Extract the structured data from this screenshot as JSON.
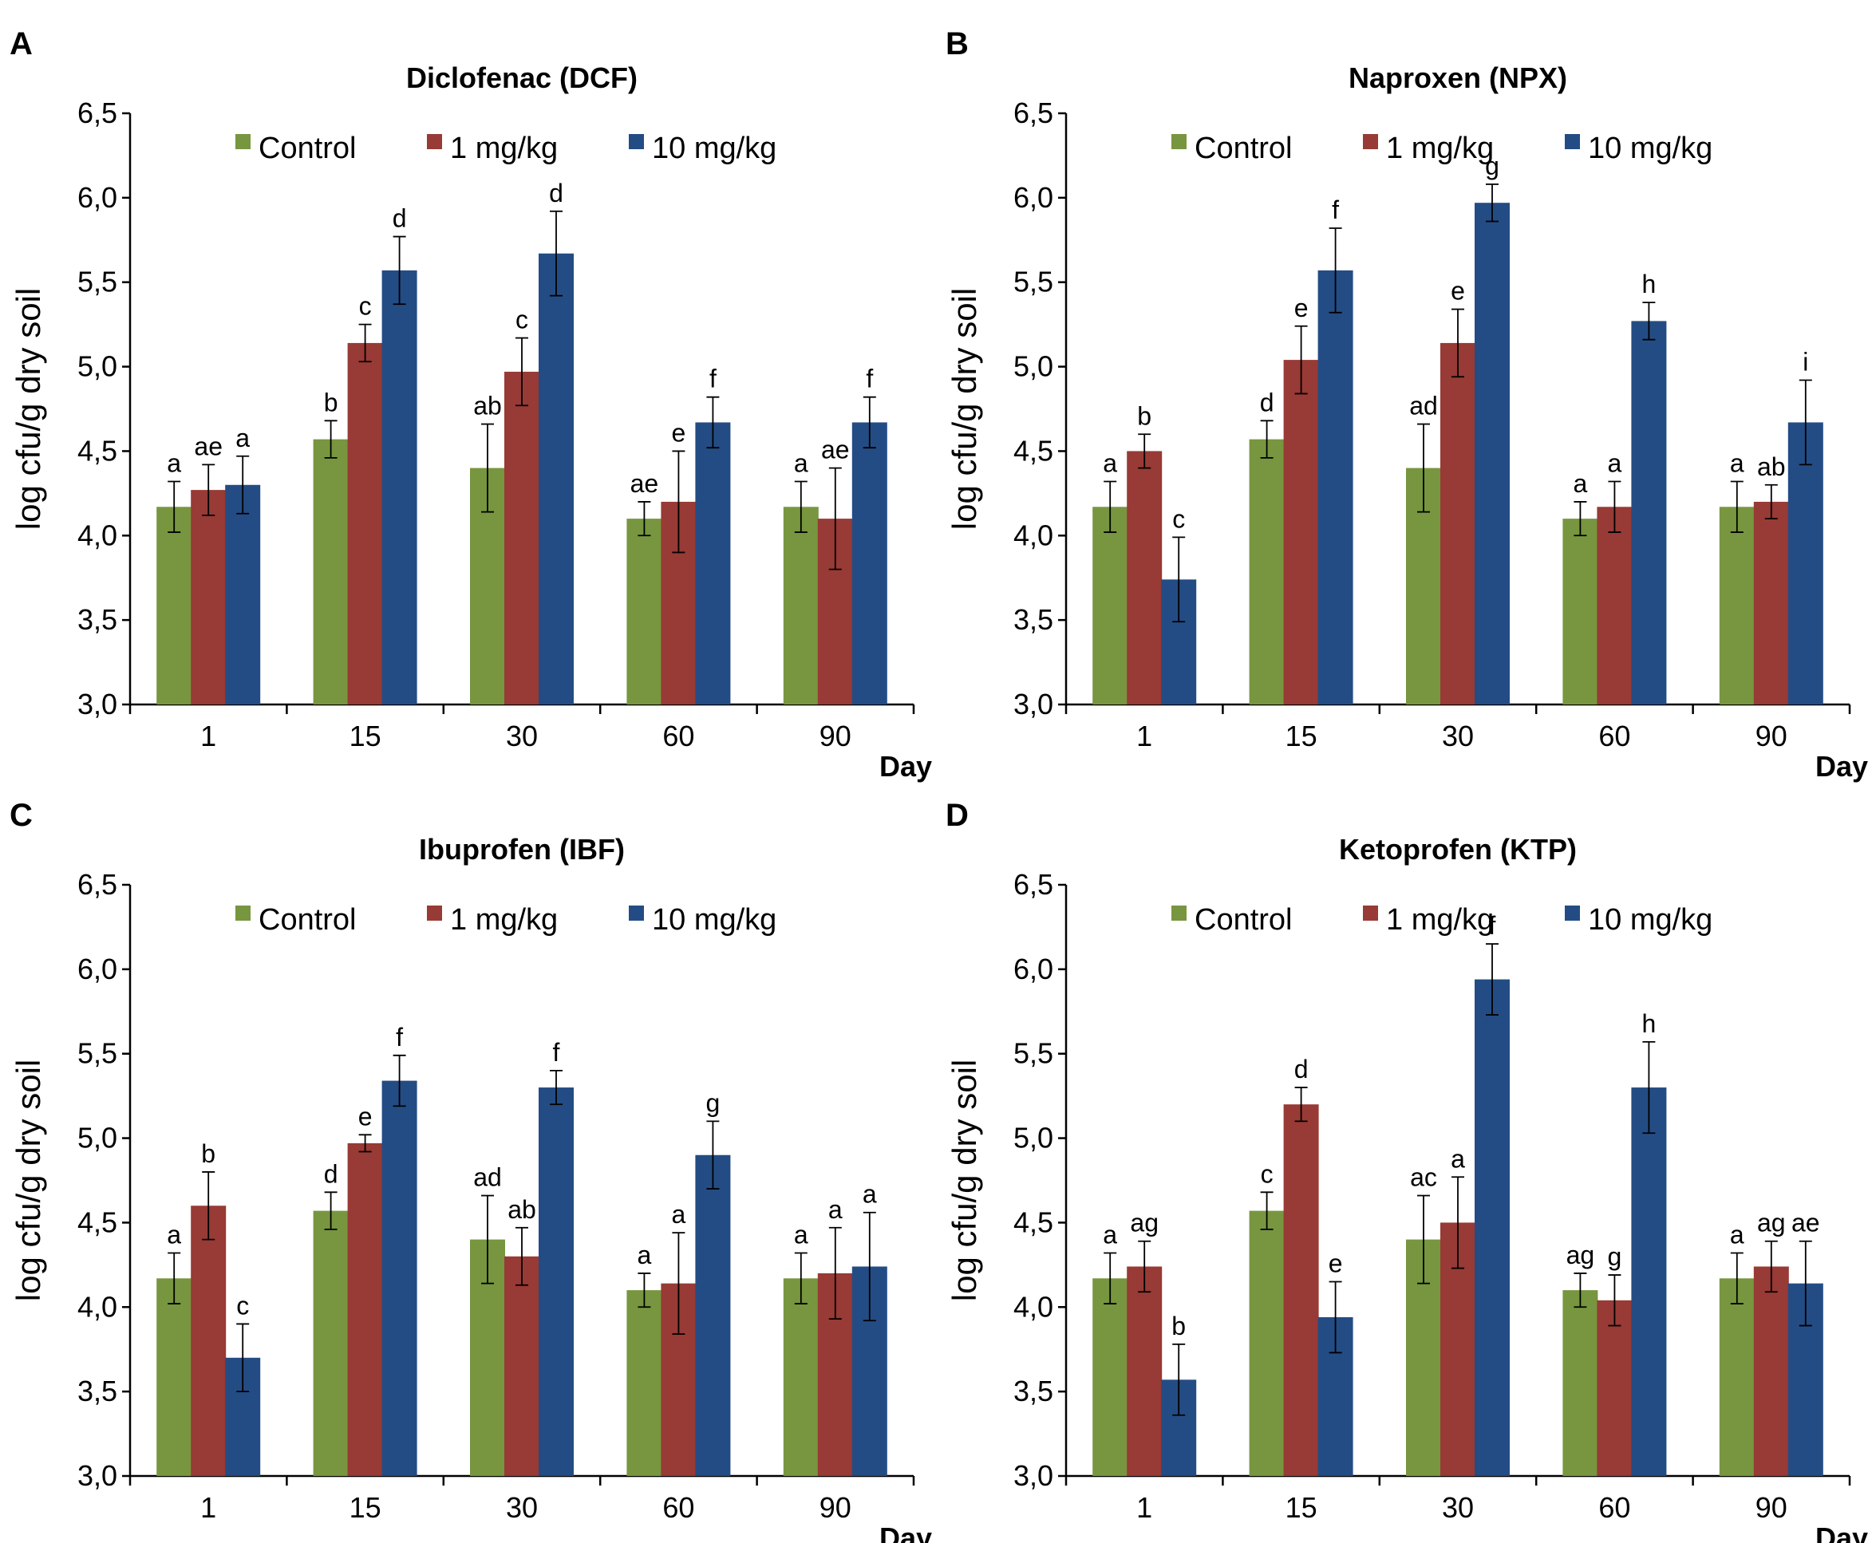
{
  "legend": {
    "entries": [
      "Control",
      "1 mg/kg",
      "10 mg/kg"
    ],
    "colors": [
      "#77963f",
      "#983a35",
      "#244c84"
    ]
  },
  "chart_data": [
    {
      "type": "bar",
      "panel_label": "A",
      "title": "Diclofenac (DCF)",
      "ylabel": "log cfu/g dry soil",
      "xlabel": "Day",
      "ylim": [
        3.0,
        6.5
      ],
      "yticks": [
        "3,0",
        "3,5",
        "4,0",
        "4,5",
        "5,0",
        "5,5",
        "6,0",
        "6,5"
      ],
      "categories": [
        "1",
        "15",
        "30",
        "60",
        "90"
      ],
      "series": [
        {
          "name": "Control",
          "values": [
            4.17,
            4.57,
            4.4,
            4.1,
            4.17
          ],
          "errors": [
            0.15,
            0.11,
            0.26,
            0.1,
            0.15
          ],
          "labels": [
            "a",
            "b",
            "ab",
            "ae",
            "a"
          ]
        },
        {
          "name": "1 mg/kg",
          "values": [
            4.27,
            5.14,
            4.97,
            4.2,
            4.1
          ],
          "errors": [
            0.15,
            0.11,
            0.2,
            0.3,
            0.3
          ],
          "labels": [
            "ae",
            "c",
            "c",
            "e",
            "ae"
          ]
        },
        {
          "name": "10 mg/kg",
          "values": [
            4.3,
            5.57,
            5.67,
            4.67,
            4.67
          ],
          "errors": [
            0.17,
            0.2,
            0.25,
            0.15,
            0.15
          ],
          "labels": [
            "a",
            "d",
            "d",
            "f",
            "f"
          ]
        }
      ]
    },
    {
      "type": "bar",
      "panel_label": "B",
      "title": "Naproxen (NPX)",
      "ylabel": "log cfu/g dry soil",
      "xlabel": "Day",
      "ylim": [
        3.0,
        6.5
      ],
      "yticks": [
        "3,0",
        "3,5",
        "4,0",
        "4,5",
        "5,0",
        "5,5",
        "6,0",
        "6,5"
      ],
      "categories": [
        "1",
        "15",
        "30",
        "60",
        "90"
      ],
      "series": [
        {
          "name": "Control",
          "values": [
            4.17,
            4.57,
            4.4,
            4.1,
            4.17
          ],
          "errors": [
            0.15,
            0.11,
            0.26,
            0.1,
            0.15
          ],
          "labels": [
            "a",
            "d",
            "ad",
            "a",
            "a"
          ]
        },
        {
          "name": "1 mg/kg",
          "values": [
            4.5,
            5.04,
            5.14,
            4.17,
            4.2
          ],
          "errors": [
            0.1,
            0.2,
            0.2,
            0.15,
            0.1
          ],
          "labels": [
            "b",
            "e",
            "e",
            "a",
            "ab"
          ]
        },
        {
          "name": "10 mg/kg",
          "values": [
            3.74,
            5.57,
            5.97,
            5.27,
            4.67
          ],
          "errors": [
            0.25,
            0.25,
            0.11,
            0.11,
            0.25
          ],
          "labels": [
            "c",
            "f",
            "g",
            "h",
            "i"
          ]
        }
      ]
    },
    {
      "type": "bar",
      "panel_label": "C",
      "title": "Ibuprofen (IBF)",
      "ylabel": "log cfu/g dry soil",
      "xlabel": "Day",
      "ylim": [
        3.0,
        6.5
      ],
      "yticks": [
        "3,0",
        "3,5",
        "4,0",
        "4,5",
        "5,0",
        "5,5",
        "6,0",
        "6,5"
      ],
      "categories": [
        "1",
        "15",
        "30",
        "60",
        "90"
      ],
      "series": [
        {
          "name": "Control",
          "values": [
            4.17,
            4.57,
            4.4,
            4.1,
            4.17
          ],
          "errors": [
            0.15,
            0.11,
            0.26,
            0.1,
            0.15
          ],
          "labels": [
            "a",
            "d",
            "ad",
            "a",
            "a"
          ]
        },
        {
          "name": "1 mg/kg",
          "values": [
            4.6,
            4.97,
            4.3,
            4.14,
            4.2
          ],
          "errors": [
            0.2,
            0.05,
            0.17,
            0.3,
            0.27
          ],
          "labels": [
            "b",
            "e",
            "ab",
            "a",
            "a"
          ]
        },
        {
          "name": "10 mg/kg",
          "values": [
            3.7,
            5.34,
            5.3,
            4.9,
            4.24
          ],
          "errors": [
            0.2,
            0.15,
            0.1,
            0.2,
            0.32
          ],
          "labels": [
            "c",
            "f",
            "f",
            "g",
            "a"
          ]
        }
      ]
    },
    {
      "type": "bar",
      "panel_label": "D",
      "title": "Ketoprofen (KTP)",
      "ylabel": "log cfu/g dry soil",
      "xlabel": "Day",
      "ylim": [
        3.0,
        6.5
      ],
      "yticks": [
        "3,0",
        "3,5",
        "4,0",
        "4,5",
        "5,0",
        "5,5",
        "6,0",
        "6,5"
      ],
      "categories": [
        "1",
        "15",
        "30",
        "60",
        "90"
      ],
      "series": [
        {
          "name": "Control",
          "values": [
            4.17,
            4.57,
            4.4,
            4.1,
            4.17
          ],
          "errors": [
            0.15,
            0.11,
            0.26,
            0.1,
            0.15
          ],
          "labels": [
            "a",
            "c",
            "ac",
            "ag",
            "a"
          ]
        },
        {
          "name": "1 mg/kg",
          "values": [
            4.24,
            5.2,
            4.5,
            4.04,
            4.24
          ],
          "errors": [
            0.15,
            0.1,
            0.27,
            0.15,
            0.15
          ],
          "labels": [
            "ag",
            "d",
            "a",
            "g",
            "ag"
          ]
        },
        {
          "name": "10 mg/kg",
          "values": [
            3.57,
            3.94,
            5.94,
            5.3,
            4.14
          ],
          "errors": [
            0.21,
            0.21,
            0.21,
            0.27,
            0.25
          ],
          "labels": [
            "b",
            "e",
            "f",
            "h",
            "ae"
          ]
        }
      ]
    }
  ]
}
